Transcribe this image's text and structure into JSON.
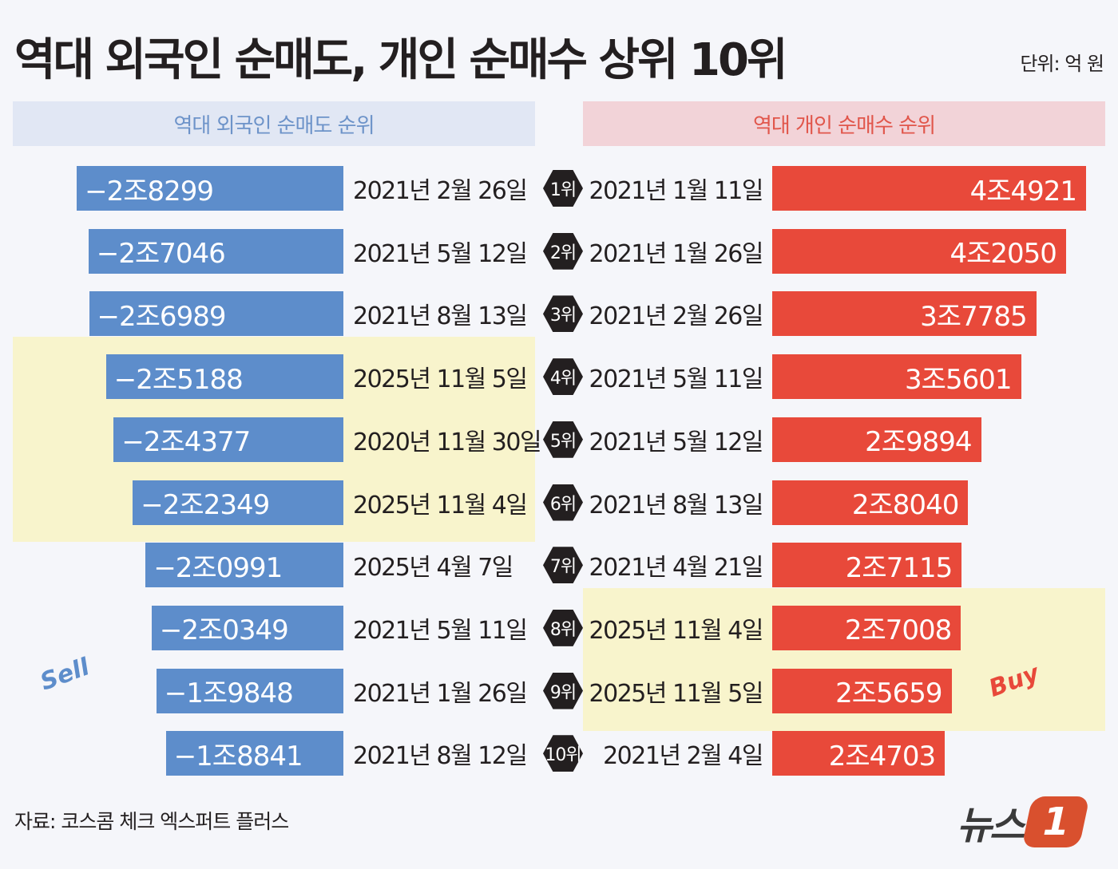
{
  "title": "역대 외국인 순매도, 개인 순매수 상위 10위",
  "unit": "단위: 억 원",
  "source": "자료: 코스콤 체크 엑스퍼트 플러스",
  "logo": {
    "text": "뉴스",
    "mark": "1"
  },
  "decorations": {
    "sell": "Sell",
    "buy": "Buy"
  },
  "colors": {
    "sell": "#5d8dcb",
    "buy": "#e8493a",
    "highlight": "#f8f4cc"
  },
  "chart_data": {
    "type": "bar",
    "ranks": [
      "1위",
      "2위",
      "3위",
      "4위",
      "5위",
      "6위",
      "7위",
      "8위",
      "9위",
      "10위"
    ],
    "series": [
      {
        "name": "역대 외국인 순매도 순위",
        "values": [
          -28299,
          -27046,
          -26989,
          -25188,
          -24377,
          -22349,
          -20991,
          -20349,
          -19848,
          -18841
        ],
        "labels": [
          "−2조8299",
          "−2조7046",
          "−2조6989",
          "−2조5188",
          "−2조4377",
          "−2조2349",
          "−2조0991",
          "−2조0349",
          "−1조9848",
          "−1조8841"
        ],
        "dates": [
          "2021년 2월 26일",
          "2021년 5월 12일",
          "2021년 8월 13일",
          "2025년 11월 5일",
          "2020년 11월 30일",
          "2025년 11월 4일",
          "2025년 4월 7일",
          "2021년 5월 11일",
          "2021년 1월 26일",
          "2021년 8월 12일"
        ],
        "highlighted": [
          4,
          6
        ]
      },
      {
        "name": "역대 개인 순매수 순위",
        "values": [
          44921,
          42050,
          37785,
          35601,
          29894,
          28040,
          27115,
          27008,
          25659,
          24703
        ],
        "labels": [
          "4조4921",
          "4조2050",
          "3조7785",
          "3조5601",
          "2조9894",
          "2조8040",
          "2조7115",
          "2조7008",
          "2조5659",
          "2조4703"
        ],
        "dates": [
          "2021년 1월 11일",
          "2021년 1월 26일",
          "2021년 2월 26일",
          "2021년 5월 11일",
          "2021년 5월 12일",
          "2021년 8월 13일",
          "2021년 4월 21일",
          "2025년 11월 4일",
          "2025년 11월 5일",
          "2021년 2월 4일"
        ],
        "highlighted": [
          8,
          9
        ]
      }
    ]
  }
}
